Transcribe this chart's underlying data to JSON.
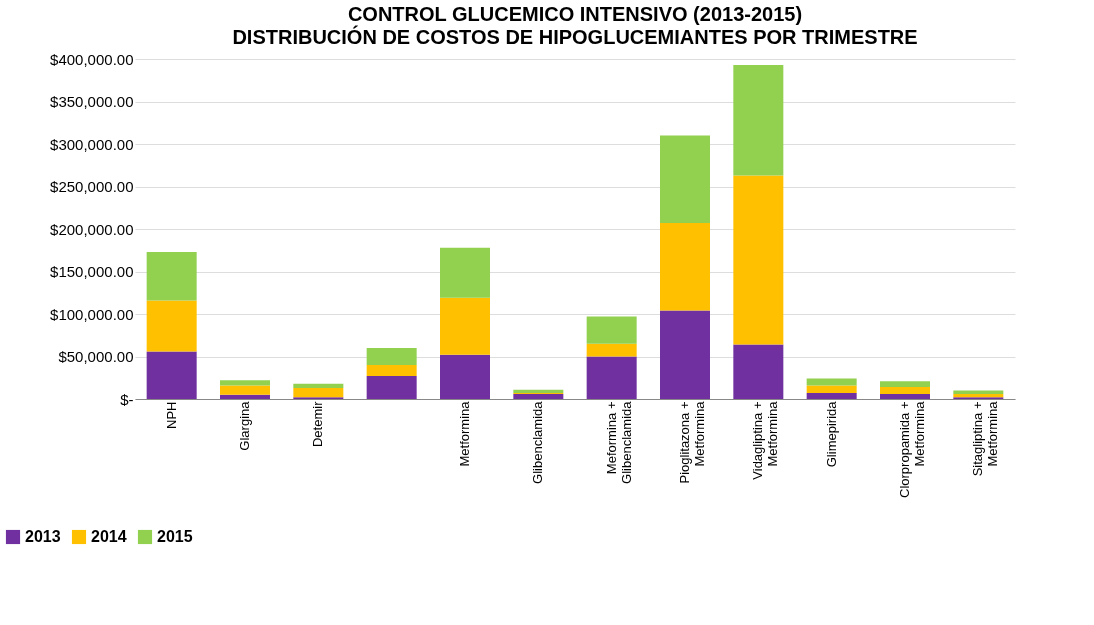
{
  "chart_data": {
    "type": "bar",
    "stacked": true,
    "title": "CONTROL GLUCEMICO INTENSIVO (2013-2015)",
    "subtitle": "DISTRIBUCIÓN DE COSTOS DE HIPOGLUCEMIANTES POR TRIMESTRE",
    "categories": [
      "NPH",
      "Glargina",
      "Detemir",
      null,
      "Metformina",
      "Glibenclamida",
      "Meformina + Glibenclamida",
      "Pioglitazona + Metformina",
      "Vidagliptina + Metformina",
      "Glimepirida",
      "Clorpropamida + Metformina",
      "Sitagliptina + Metformina"
    ],
    "series": [
      {
        "name": "2013",
        "color": "#7030a0",
        "values": [
          56000,
          5000,
          2000,
          27000,
          52000,
          6000,
          50000,
          104000,
          64000,
          7000,
          6000,
          2000
        ]
      },
      {
        "name": "2014",
        "color": "#ffc000",
        "values": [
          60000,
          11000,
          11000,
          13000,
          67000,
          1000,
          15000,
          103000,
          199000,
          9000,
          8000,
          4000
        ]
      },
      {
        "name": "2015",
        "color": "#92d050",
        "values": [
          57000,
          6000,
          5000,
          20000,
          59000,
          4000,
          32000,
          103000,
          130000,
          8000,
          7000,
          4000
        ]
      }
    ],
    "ylim": [
      0,
      400000
    ],
    "yticks": [
      {
        "value": 0,
        "label": "$-"
      },
      {
        "value": 50000,
        "label": "$50,000.00"
      },
      {
        "value": 100000,
        "label": "$100,000.00"
      },
      {
        "value": 150000,
        "label": "$150,000.00"
      },
      {
        "value": 200000,
        "label": "$200,000.00"
      },
      {
        "value": 250000,
        "label": "$250,000.00"
      },
      {
        "value": 300000,
        "label": "$300,000.00"
      },
      {
        "value": 350000,
        "label": "$350,000.00"
      },
      {
        "value": 400000,
        "label": "$400,000.00"
      }
    ],
    "grid": "y",
    "legend": "bottom left"
  }
}
